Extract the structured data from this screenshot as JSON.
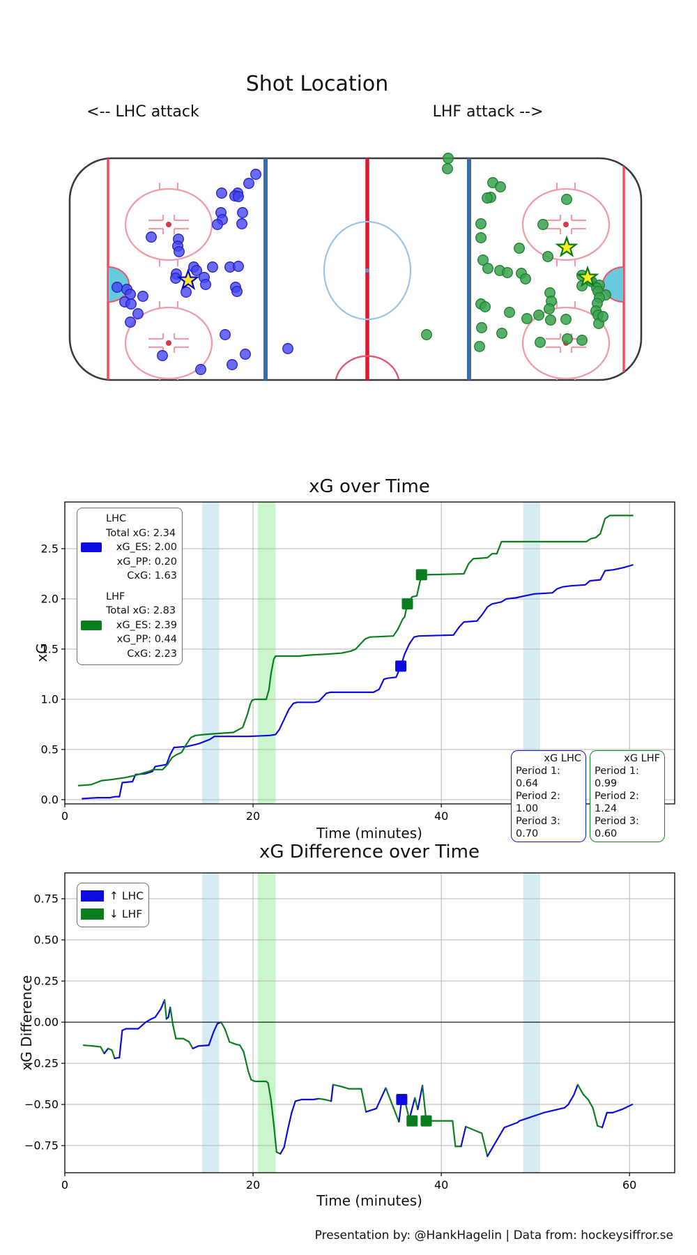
{
  "page": {
    "footer": "Presentation by: @HankHagelin | Data from: hockeysiffror.se"
  },
  "colors": {
    "lhc_line": "#0b0be0",
    "lhf_line": "#0a7d1e",
    "lhc_dot_fill": "#4545ef",
    "lhc_dot_edge": "#2020c8",
    "lhf_dot_fill": "#3aa24e",
    "lhf_dot_edge": "#1c7d30",
    "star_fill": "#ffec20",
    "band_blue": "#add8e6",
    "band_green": "#98ee98",
    "grid": "#b3b3b3"
  },
  "shot_plot": {
    "title": "Shot Location",
    "left_label": "<-- LHC attack",
    "right_label": "LHF attack -->",
    "lhc_shots": [
      [
        367,
        250
      ],
      [
        357,
        263
      ],
      [
        341,
        277
      ],
      [
        318,
        277
      ],
      [
        337,
        281
      ],
      [
        342,
        282
      ],
      [
        348,
        305
      ],
      [
        317,
        305
      ],
      [
        319,
        315
      ],
      [
        347,
        321
      ],
      [
        312,
        322
      ],
      [
        217,
        340
      ],
      [
        256,
        343
      ],
      [
        255,
        353
      ],
      [
        257,
        361
      ],
      [
        278,
        383
      ],
      [
        305,
        383
      ],
      [
        330,
        383
      ],
      [
        342,
        382
      ],
      [
        282,
        388
      ],
      [
        253,
        393
      ],
      [
        252,
        399
      ],
      [
        293,
        398
      ],
      [
        295,
        408
      ],
      [
        338,
        412
      ],
      [
        340,
        418
      ],
      [
        267,
        419
      ],
      [
        182,
        415
      ],
      [
        168,
        412
      ],
      [
        187,
        422
      ],
      [
        205,
        425
      ],
      [
        179,
        433
      ],
      [
        188,
        436
      ],
      [
        198,
        450
      ],
      [
        187,
        462
      ],
      [
        233,
        510
      ],
      [
        323,
        480
      ],
      [
        352,
        508
      ],
      [
        333,
        523
      ],
      [
        288,
        530
      ],
      [
        413,
        500
      ]
    ],
    "lhc_goals": [
      [
        270,
        402
      ]
    ],
    "lhf_shots": [
      [
        643,
        227
      ],
      [
        642,
        242
      ],
      [
        707,
        262
      ],
      [
        718,
        268
      ],
      [
        704,
        283
      ],
      [
        699,
        284
      ],
      [
        813,
        286
      ],
      [
        690,
        321
      ],
      [
        779,
        322
      ],
      [
        690,
        341
      ],
      [
        745,
        356
      ],
      [
        786,
        368
      ],
      [
        693,
        373
      ],
      [
        700,
        385
      ],
      [
        717,
        388
      ],
      [
        728,
        391
      ],
      [
        748,
        392
      ],
      [
        754,
        400
      ],
      [
        835,
        395
      ],
      [
        846,
        402
      ],
      [
        849,
        404
      ],
      [
        860,
        409
      ],
      [
        835,
        410
      ],
      [
        856,
        413
      ],
      [
        858,
        418
      ],
      [
        869,
        423
      ],
      [
        789,
        420
      ],
      [
        860,
        427
      ],
      [
        791,
        432
      ],
      [
        857,
        435
      ],
      [
        690,
        436
      ],
      [
        696,
        440
      ],
      [
        731,
        448
      ],
      [
        773,
        452
      ],
      [
        788,
        443
      ],
      [
        756,
        457
      ],
      [
        855,
        446
      ],
      [
        858,
        452
      ],
      [
        812,
        458
      ],
      [
        859,
        464
      ],
      [
        865,
        454
      ],
      [
        790,
        459
      ],
      [
        775,
        491
      ],
      [
        814,
        486
      ],
      [
        691,
        470
      ],
      [
        720,
        478
      ],
      [
        612,
        480
      ],
      [
        688,
        497
      ],
      [
        835,
        488
      ]
    ],
    "lhf_goals": [
      [
        813,
        355
      ],
      [
        843,
        398
      ]
    ]
  },
  "chart_data": [
    {
      "type": "line",
      "title": "xG over Time",
      "xlabel": "Time (minutes)",
      "ylabel": "xG",
      "xlim": [
        0,
        64.8
      ],
      "ylim": [
        -0.042,
        2.965
      ],
      "xticks": [
        0,
        20,
        40,
        60
      ],
      "xtick_labels": [
        "0",
        "20",
        "40",
        "60"
      ],
      "yticks": [
        0.0,
        0.5,
        1.0,
        1.5,
        2.0,
        2.5
      ],
      "ytick_labels": [
        "0.0",
        "0.5",
        "1.0",
        "1.5",
        "2.0",
        "2.5"
      ],
      "grid": true,
      "zero_line": false,
      "pp_bands": [
        {
          "start": 14.6,
          "end": 16.4,
          "color": "blue"
        },
        {
          "start": 20.5,
          "end": 22.4,
          "color": "green"
        },
        {
          "start": 48.7,
          "end": 50.5,
          "color": "blue"
        }
      ],
      "series": [
        {
          "name": "LHC",
          "color": "#0b0be0",
          "x": [
            1.8,
            3.5,
            4.8,
            5.4,
            5.8,
            6.1,
            7.2,
            7.5,
            8.6,
            9.3,
            9.6,
            10.8,
            11.2,
            11.6,
            13.0,
            13.9,
            14.3,
            15.4,
            15.9,
            16.3,
            19.5,
            21.8,
            22.4,
            22.8,
            23.3,
            23.8,
            24.3,
            24.7,
            26.5,
            27.0,
            27.8,
            28.2,
            32.8,
            33.4,
            33.9,
            34.3,
            35.2,
            35.7,
            36.1,
            36.6,
            37.1,
            37.6,
            41.3,
            41.9,
            42.4,
            43.8,
            44.4,
            44.9,
            45.4,
            46.4,
            46.9,
            47.9,
            48.9,
            49.9,
            51.8,
            52.3,
            52.9,
            53.8,
            55.3,
            55.8,
            56.9,
            57.4,
            58.3,
            59.3,
            60.4
          ],
          "y": [
            0.01,
            0.02,
            0.02,
            0.03,
            0.03,
            0.17,
            0.18,
            0.25,
            0.26,
            0.28,
            0.33,
            0.35,
            0.45,
            0.52,
            0.53,
            0.55,
            0.56,
            0.6,
            0.63,
            0.63,
            0.63,
            0.64,
            0.65,
            0.7,
            0.8,
            0.9,
            0.96,
            0.97,
            0.97,
            0.98,
            1.06,
            1.07,
            1.07,
            1.1,
            1.2,
            1.21,
            1.22,
            1.33,
            1.45,
            1.55,
            1.62,
            1.63,
            1.64,
            1.72,
            1.77,
            1.78,
            1.85,
            1.92,
            1.95,
            1.97,
            2.0,
            2.01,
            2.03,
            2.05,
            2.06,
            2.1,
            2.12,
            2.13,
            2.14,
            2.18,
            2.19,
            2.28,
            2.29,
            2.31,
            2.34
          ],
          "goals": {
            "x": [
              35.7
            ],
            "y": [
              1.33
            ]
          },
          "legend_lines": [
            "LHC",
            "Total xG: 2.34",
            "xG_ES: 2.00",
            "xG_PP: 0.20",
            "CxG: 1.63"
          ]
        },
        {
          "name": "LHF",
          "color": "#0a7d1e",
          "x": [
            1.4,
            2.8,
            3.9,
            4.9,
            6.4,
            7.4,
            8.9,
            9.4,
            10.4,
            10.9,
            11.4,
            11.9,
            12.4,
            12.9,
            13.4,
            13.9,
            14.9,
            16.4,
            17.9,
            18.9,
            19.4,
            19.7,
            19.9,
            20.2,
            21.4,
            21.7,
            21.9,
            22.2,
            22.4,
            24.9,
            25.9,
            27.9,
            29.4,
            30.4,
            30.9,
            31.9,
            32.4,
            34.9,
            35.4,
            35.9,
            36.1,
            36.4,
            36.9,
            37.4,
            37.9,
            38.4,
            42.4,
            42.9,
            43.4,
            44.9,
            45.4,
            45.9,
            46.4,
            46.9,
            55.4,
            55.9,
            56.4,
            56.9,
            57.4,
            57.9,
            60.4
          ],
          "y": [
            0.14,
            0.15,
            0.19,
            0.2,
            0.22,
            0.24,
            0.28,
            0.3,
            0.3,
            0.35,
            0.42,
            0.45,
            0.47,
            0.55,
            0.62,
            0.64,
            0.65,
            0.66,
            0.67,
            0.72,
            0.85,
            0.95,
            0.99,
            1.0,
            1.0,
            1.1,
            1.25,
            1.4,
            1.43,
            1.43,
            1.44,
            1.45,
            1.46,
            1.48,
            1.5,
            1.6,
            1.62,
            1.63,
            1.7,
            1.8,
            1.82,
            1.95,
            2.02,
            2.03,
            2.24,
            2.24,
            2.25,
            2.35,
            2.4,
            2.41,
            2.45,
            2.45,
            2.57,
            2.57,
            2.57,
            2.6,
            2.61,
            2.65,
            2.8,
            2.83,
            2.83
          ],
          "goals": {
            "x": [
              36.4,
              37.9
            ],
            "y": [
              1.95,
              2.24
            ]
          },
          "legend_lines": [
            "LHF",
            "Total xG: 2.83",
            "xG_ES: 2.39",
            "xG_PP: 0.44",
            "CxG: 2.23"
          ]
        }
      ],
      "period_boxes": [
        {
          "title": "xG LHC",
          "color": "#1414e0",
          "rows": [
            "Period 1: 0.64",
            "Period 2: 1.00",
            "Period 3: 0.70"
          ]
        },
        {
          "title": "xG LHF",
          "color": "#0e8c1e",
          "rows": [
            "Period 1: 0.99",
            "Period 2: 1.24",
            "Period 3: 0.60"
          ]
        }
      ]
    },
    {
      "type": "line",
      "title": "xG Difference over Time",
      "xlabel": "Time (minutes)",
      "ylabel": "xG Difference",
      "xlim": [
        0,
        64.8
      ],
      "ylim": [
        -0.915,
        0.907
      ],
      "xticks": [
        0,
        20,
        40,
        60
      ],
      "xtick_labels": [
        "0",
        "20",
        "40",
        "60"
      ],
      "yticks": [
        0.75,
        0.5,
        0.25,
        0.0,
        -0.25,
        -0.5,
        -0.75
      ],
      "ytick_labels": [
        "0.75",
        "0.50",
        "0.25",
        "0.00",
        "−0.25",
        "−0.50",
        "−0.75"
      ],
      "grid": true,
      "zero_line": true,
      "pp_bands": [
        {
          "start": 14.6,
          "end": 16.4,
          "color": "blue"
        },
        {
          "start": 20.5,
          "end": 22.4,
          "color": "green"
        },
        {
          "start": 48.7,
          "end": 50.5,
          "color": "blue"
        }
      ],
      "legend_entries": [
        {
          "label": "↑ LHC",
          "color": "#0b0be0"
        },
        {
          "label": "↓ LHF",
          "color": "#0a7d1e"
        }
      ],
      "diff_series": {
        "up_color": "#0b0be0",
        "down_color": "#0a7d1e",
        "x": [
          2.0,
          3.0,
          3.8,
          4.2,
          4.6,
          5.0,
          5.3,
          5.8,
          6.1,
          6.5,
          7.8,
          8.2,
          8.6,
          9.2,
          9.6,
          10.2,
          10.6,
          10.8,
          11.0,
          11.2,
          11.5,
          11.8,
          12.6,
          13.2,
          13.6,
          14.2,
          15.3,
          15.8,
          16.2,
          16.6,
          17.0,
          17.5,
          18.2,
          18.6,
          19.0,
          19.5,
          19.8,
          20.2,
          21.4,
          21.6,
          21.9,
          22.2,
          22.5,
          22.9,
          23.3,
          23.7,
          24.1,
          24.5,
          25.2,
          26.4,
          27.0,
          27.6,
          28.3,
          28.5,
          29.3,
          30.2,
          31.5,
          32.0,
          33.1,
          34.1,
          35.5,
          35.8,
          36.1,
          36.6,
          37.2,
          37.5,
          38.0,
          38.4,
          41.2,
          41.5,
          42.1,
          42.6,
          44.3,
          44.9,
          46.7,
          48.1,
          48.3,
          50.9,
          53.1,
          53.5,
          54.1,
          54.5,
          55.1,
          55.6,
          56.1,
          56.6,
          57.1,
          57.6,
          58.2,
          59.2,
          60.3
        ],
        "y": [
          -0.14,
          -0.145,
          -0.15,
          -0.19,
          -0.16,
          -0.17,
          -0.22,
          -0.215,
          -0.05,
          -0.04,
          -0.04,
          -0.02,
          0.0,
          0.02,
          0.03,
          0.08,
          0.135,
          0.02,
          0.03,
          0.09,
          -0.02,
          -0.1,
          -0.1,
          -0.12,
          -0.16,
          -0.145,
          -0.14,
          -0.06,
          -0.01,
          0.0,
          -0.04,
          -0.12,
          -0.135,
          -0.14,
          -0.18,
          -0.3,
          -0.35,
          -0.36,
          -0.36,
          -0.37,
          -0.47,
          -0.62,
          -0.79,
          -0.8,
          -0.76,
          -0.65,
          -0.55,
          -0.48,
          -0.47,
          -0.47,
          -0.465,
          -0.47,
          -0.48,
          -0.38,
          -0.39,
          -0.405,
          -0.405,
          -0.545,
          -0.525,
          -0.4,
          -0.605,
          -0.47,
          -0.47,
          -0.59,
          -0.46,
          -0.53,
          -0.385,
          -0.6,
          -0.6,
          -0.755,
          -0.755,
          -0.635,
          -0.675,
          -0.815,
          -0.64,
          -0.61,
          -0.6,
          -0.55,
          -0.52,
          -0.5,
          -0.44,
          -0.38,
          -0.44,
          -0.47,
          -0.52,
          -0.63,
          -0.64,
          -0.55,
          -0.55,
          -0.53,
          -0.5
        ]
      },
      "goal_markers": [
        {
          "color": "#0b0be0",
          "x": 35.8,
          "y": -0.47
        },
        {
          "color": "#0a7d1e",
          "x": 36.9,
          "y": -0.6
        },
        {
          "color": "#0a7d1e",
          "x": 38.4,
          "y": -0.6
        }
      ]
    }
  ]
}
